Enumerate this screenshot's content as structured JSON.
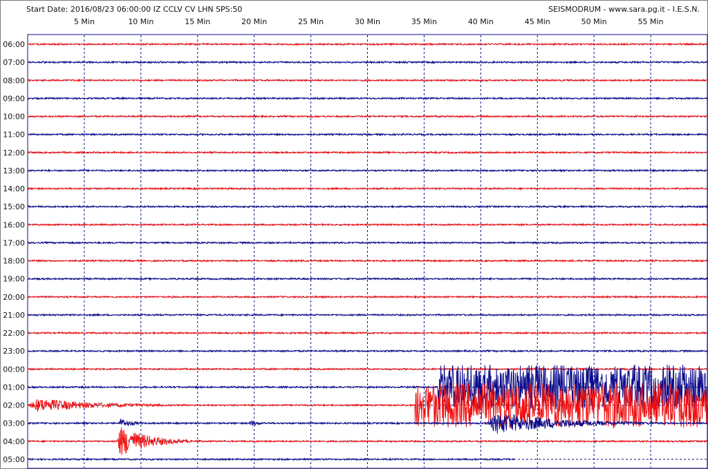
{
  "header": {
    "start_info": "Start Date: 2016/08/23 06:00:00 IZ CCLV CV LHN SPS:50",
    "credit": "SEISMODRUM - www.sara.pg.it - I.E.S.N."
  },
  "colors": {
    "trace_a": "#ee1111",
    "trace_b": "#0a0a8a",
    "grid": "#0a0a8a",
    "frame": "#0a0a8a"
  },
  "chart_data": {
    "type": "line",
    "title": "",
    "x_unit": "Min",
    "x_ticks": [
      {
        "value": 5,
        "label": "5 Min"
      },
      {
        "value": 10,
        "label": "10 Min"
      },
      {
        "value": 15,
        "label": "15 Min"
      },
      {
        "value": 20,
        "label": "20 Min"
      },
      {
        "value": 25,
        "label": "25 Min"
      },
      {
        "value": 30,
        "label": "30 Min"
      },
      {
        "value": 35,
        "label": "35 Min"
      },
      {
        "value": 40,
        "label": "40 Min"
      },
      {
        "value": 45,
        "label": "45 Min"
      },
      {
        "value": 50,
        "label": "50 Min"
      },
      {
        "value": 55,
        "label": "55 Min"
      }
    ],
    "xlim": [
      0,
      60
    ],
    "grid": true,
    "rows": [
      "06:00",
      "07:00",
      "08:00",
      "09:00",
      "10:00",
      "11:00",
      "12:00",
      "13:00",
      "14:00",
      "15:00",
      "16:00",
      "17:00",
      "18:00",
      "19:00",
      "20:00",
      "21:00",
      "22:00",
      "23:00",
      "00:00",
      "01:00",
      "02:00",
      "03:00",
      "04:00",
      "05:00"
    ],
    "events": [
      {
        "row": "01:00",
        "start_min": 36.2,
        "end_min": 60,
        "amplitude": 2.5
      },
      {
        "row": "02:00",
        "start_min": 0,
        "end_min": 18,
        "amplitude": 0.9
      },
      {
        "row": "02:00",
        "start_min": 34.2,
        "end_min": 60,
        "amplitude": 2.5
      },
      {
        "row": "03:00",
        "start_min": 8.0,
        "end_min": 12.0,
        "amplitude": 0.6
      },
      {
        "row": "03:00",
        "start_min": 19.5,
        "end_min": 23.0,
        "amplitude": 0.35
      },
      {
        "row": "03:00",
        "start_min": 40.5,
        "end_min": 60,
        "amplitude": 1.4
      },
      {
        "row": "04:00",
        "start_min": 7.8,
        "end_min": 16.0,
        "amplitude": 2.0
      }
    ],
    "last_row_end_min": 43
  }
}
